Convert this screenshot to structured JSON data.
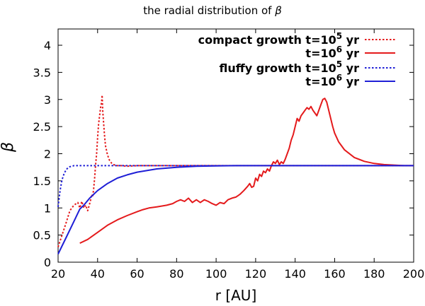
{
  "chart_data": {
    "type": "line",
    "title": "the radial distribution of ",
    "title_symbol": "β",
    "xlabel": "r [AU]",
    "ylabel": "β",
    "xlim": [
      20,
      200
    ],
    "ylim": [
      0,
      4.3
    ],
    "xticks": [
      20,
      40,
      60,
      80,
      100,
      120,
      140,
      160,
      180,
      200
    ],
    "yticks": [
      0,
      0.5,
      1,
      1.5,
      2,
      2.5,
      3,
      3.5,
      4
    ],
    "xtick_labels": [
      "20",
      "40",
      "60",
      "80",
      "100",
      "120",
      "140",
      "160",
      "180",
      "200"
    ],
    "ytick_labels": [
      "0",
      "0.5",
      "1",
      "1.5",
      "2",
      "2.5",
      "3",
      "3.5",
      "4"
    ],
    "legend": [
      {
        "group": "compact growth",
        "base": "t=10",
        "exp": "5",
        "unit": "yr",
        "color": "#e41a1c",
        "dash": "dotted"
      },
      {
        "group": "",
        "base": "t=10",
        "exp": "6",
        "unit": "yr",
        "color": "#e41a1c",
        "dash": "solid"
      },
      {
        "group": "fluffy growth",
        "base": "t=10",
        "exp": "5",
        "unit": "yr",
        "color": "#1f1fd6",
        "dash": "dotted"
      },
      {
        "group": "",
        "base": "t=10",
        "exp": "6",
        "unit": "yr",
        "color": "#1f1fd6",
        "dash": "solid"
      }
    ],
    "series": [
      {
        "name": "compact growth t=10^5 yr",
        "color": "#e41a1c",
        "dash": "dotted",
        "x": [
          20,
          22,
          24,
          26,
          28,
          30,
          31,
          32,
          33,
          34,
          35,
          36,
          36.5,
          37,
          37.5,
          38,
          38.5,
          39,
          39.5,
          40,
          40.5,
          41,
          41.5,
          42,
          42.3,
          42.6,
          43,
          43.5,
          44,
          45,
          46,
          47,
          48,
          50,
          52,
          55,
          60,
          70,
          80,
          100,
          120,
          140,
          160,
          180,
          200
        ],
        "y": [
          0.28,
          0.5,
          0.72,
          0.95,
          1.05,
          1.1,
          1.0,
          1.12,
          1.0,
          1.05,
          0.95,
          1.08,
          1.15,
          1.25,
          1.2,
          1.35,
          1.55,
          1.8,
          2.0,
          2.3,
          2.55,
          2.7,
          2.85,
          2.95,
          3.08,
          2.8,
          2.6,
          2.35,
          2.15,
          1.98,
          1.88,
          1.83,
          1.8,
          1.78,
          1.78,
          1.77,
          1.78,
          1.78,
          1.78,
          1.78,
          1.78,
          1.78,
          1.78,
          1.78,
          1.78
        ]
      },
      {
        "name": "compact growth t=10^6 yr",
        "color": "#e41a1c",
        "dash": "solid",
        "x": [
          31,
          35,
          40,
          45,
          50,
          55,
          60,
          63,
          66,
          70,
          75,
          78,
          80,
          82,
          84,
          86,
          88,
          90,
          92,
          94,
          96,
          98,
          100,
          102,
          104,
          106,
          108,
          110,
          112,
          114,
          116,
          117,
          118,
          119,
          120,
          121,
          122,
          123,
          124,
          125,
          126,
          127,
          128,
          129,
          130,
          131,
          132,
          133,
          134,
          135,
          136,
          137,
          138,
          139,
          140,
          141,
          142,
          143,
          144,
          145,
          146,
          147,
          148,
          149,
          150,
          151,
          152,
          153,
          154,
          155,
          156,
          157,
          158,
          159,
          160,
          162,
          165,
          170,
          175,
          180,
          185,
          190,
          195,
          200
        ],
        "y": [
          0.35,
          0.42,
          0.55,
          0.68,
          0.78,
          0.86,
          0.93,
          0.97,
          1.0,
          1.02,
          1.05,
          1.08,
          1.12,
          1.15,
          1.12,
          1.18,
          1.1,
          1.15,
          1.1,
          1.15,
          1.12,
          1.08,
          1.05,
          1.1,
          1.08,
          1.15,
          1.18,
          1.2,
          1.25,
          1.32,
          1.4,
          1.45,
          1.38,
          1.4,
          1.55,
          1.5,
          1.62,
          1.58,
          1.68,
          1.65,
          1.72,
          1.68,
          1.78,
          1.85,
          1.82,
          1.88,
          1.8,
          1.85,
          1.82,
          1.9,
          2.0,
          2.1,
          2.25,
          2.35,
          2.5,
          2.65,
          2.6,
          2.7,
          2.75,
          2.8,
          2.85,
          2.82,
          2.87,
          2.8,
          2.75,
          2.7,
          2.8,
          2.9,
          3.0,
          3.02,
          2.95,
          2.8,
          2.65,
          2.5,
          2.38,
          2.22,
          2.07,
          1.93,
          1.86,
          1.82,
          1.8,
          1.79,
          1.78,
          1.78
        ]
      },
      {
        "name": "fluffy growth t=10^5 yr",
        "color": "#1f1fd6",
        "dash": "dotted",
        "x": [
          20,
          21,
          22,
          23,
          24,
          25,
          26,
          27,
          28,
          30,
          33,
          36,
          40,
          50,
          60,
          80,
          100,
          120,
          140,
          160,
          180,
          200
        ],
        "y": [
          1.02,
          1.32,
          1.52,
          1.63,
          1.7,
          1.74,
          1.76,
          1.77,
          1.78,
          1.78,
          1.78,
          1.78,
          1.78,
          1.78,
          1.78,
          1.78,
          1.78,
          1.78,
          1.78,
          1.78,
          1.78,
          1.78
        ]
      },
      {
        "name": "fluffy growth t=10^6 yr",
        "color": "#1f1fd6",
        "dash": "solid",
        "x": [
          20,
          24,
          28,
          31,
          33,
          36,
          40,
          45,
          50,
          55,
          60,
          70,
          80,
          90,
          100,
          110,
          120,
          140,
          160,
          180,
          200
        ],
        "y": [
          0.15,
          0.45,
          0.75,
          0.98,
          1.05,
          1.18,
          1.32,
          1.45,
          1.55,
          1.61,
          1.66,
          1.72,
          1.75,
          1.77,
          1.775,
          1.78,
          1.78,
          1.78,
          1.78,
          1.78,
          1.78
        ]
      }
    ]
  }
}
